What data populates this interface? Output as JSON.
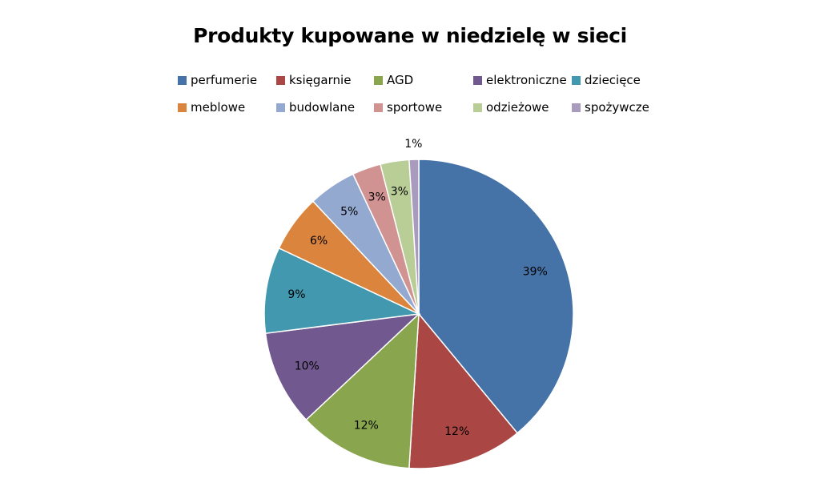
{
  "chart_data": {
    "type": "pie",
    "title": "Produkty kupowane  w niedzielę  w sieci",
    "legend_position": "top",
    "categories": [
      "perfumerie",
      "księgarnie",
      "AGD",
      "elektroniczne",
      "dziecięce",
      "meblowe",
      "budowlane",
      "sportowe",
      "odzieżowe",
      "spożywcze"
    ],
    "values": [
      39,
      12,
      12,
      10,
      9,
      6,
      5,
      3,
      3,
      1
    ],
    "labels": [
      "39%",
      "12%",
      "12%",
      "10%",
      "9%",
      "6%",
      "5%",
      "3%",
      "3%",
      "1%"
    ],
    "colors": [
      "#4572A7",
      "#AA4643",
      "#89A54E",
      "#71588F",
      "#4198AF",
      "#DB843D",
      "#93A9CF",
      "#D19392",
      "#B9CD96",
      "#A99BBD"
    ]
  }
}
